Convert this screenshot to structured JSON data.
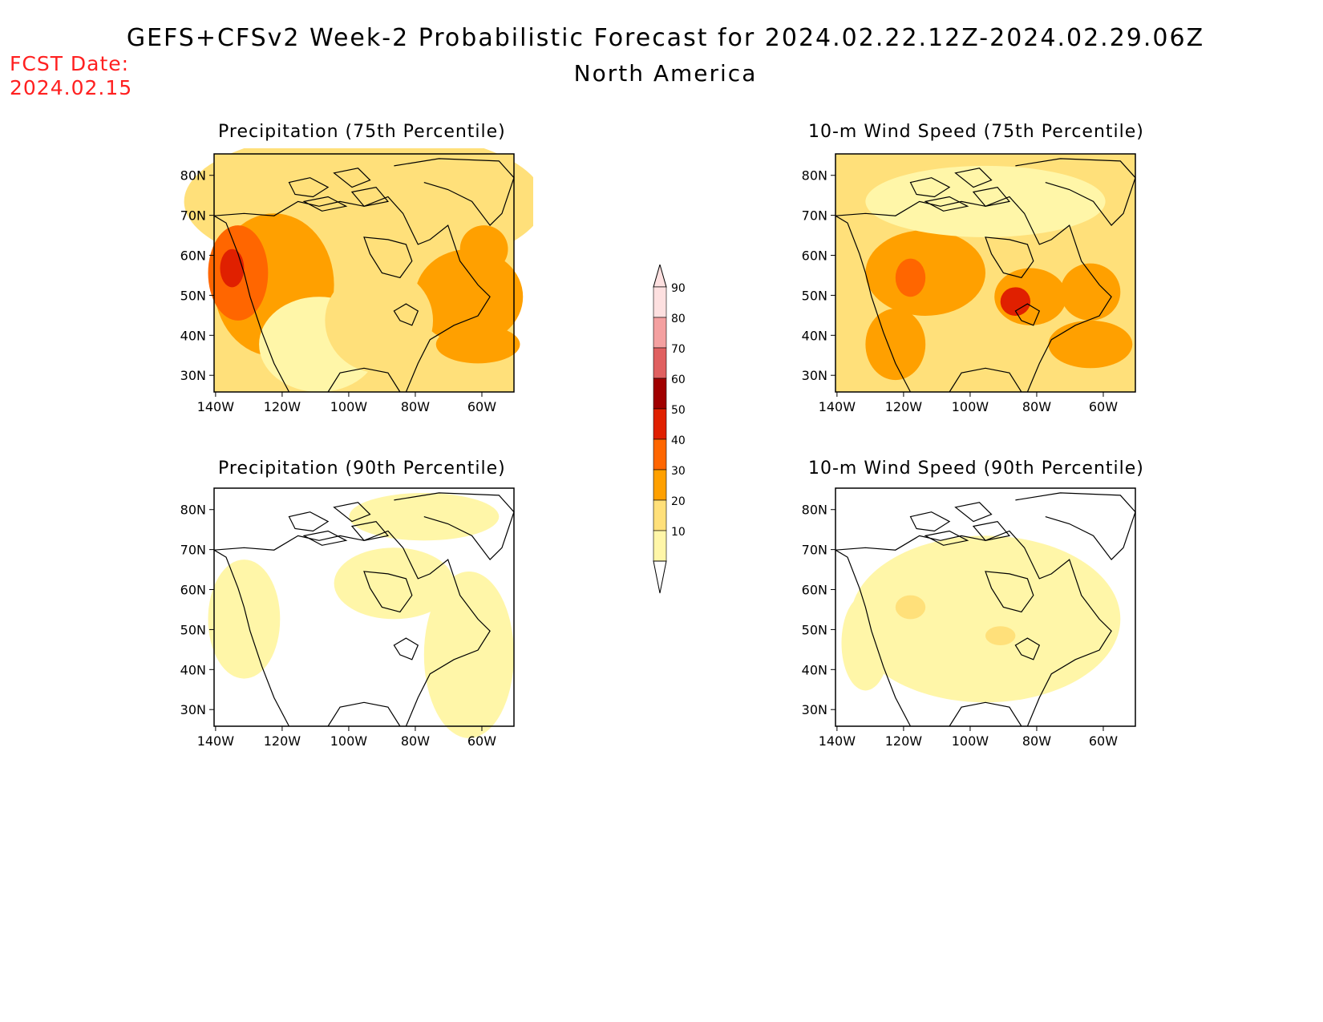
{
  "title": "GEFS+CFSv2 Week-2 Probabilistic Forecast for 2024.02.22.12Z-2024.02.29.06Z",
  "subtitle": "North America",
  "fcst_label": "FCST Date:",
  "fcst_date": "2024.02.15",
  "colors": {
    "land_outline": "#000000",
    "level_10": "#fff6a8",
    "level_20": "#ffe07a",
    "level_30": "#ffa000",
    "level_40": "#ff6600",
    "level_50": "#e02000",
    "level_60": "#a00000",
    "level_70": "#e06060",
    "level_80": "#f4a0a0",
    "level_90": "#fde0e0"
  },
  "panels": [
    {
      "id": "precip75",
      "title": "Precipitation (75th Percentile)"
    },
    {
      "id": "wind75",
      "title": "10-m Wind Speed (75th Percentile)"
    },
    {
      "id": "precip90",
      "title": "Precipitation (90th Percentile)"
    },
    {
      "id": "wind90",
      "title": "10-m Wind Speed (90th Percentile)"
    }
  ],
  "axes": {
    "lat_labels": [
      "80N",
      "70N",
      "60N",
      "50N",
      "40N",
      "30N"
    ],
    "lon_labels": [
      "140W",
      "120W",
      "100W",
      "80W",
      "60W"
    ]
  },
  "colorbar": {
    "levels": [
      "90",
      "80",
      "70",
      "60",
      "50",
      "40",
      "30",
      "20",
      "10"
    ]
  }
}
